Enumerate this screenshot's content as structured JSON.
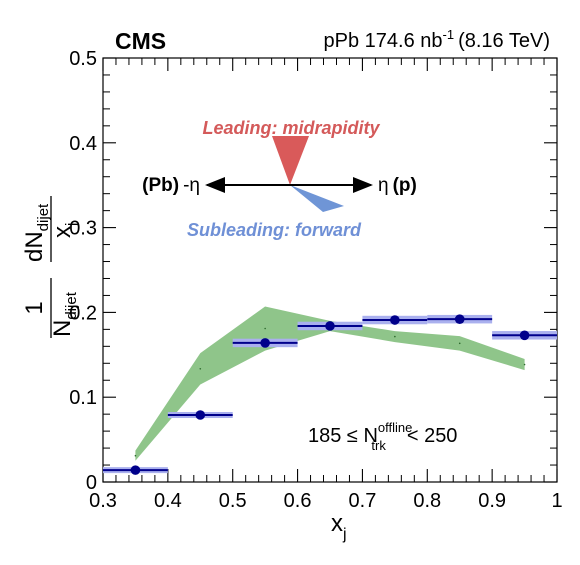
{
  "header": {
    "experiment": "CMS",
    "system": "pPb 174.6 nb",
    "lumi_exp": "-1",
    "energy": "(8.16 TeV)"
  },
  "diagram": {
    "leading": "Leading: midrapidity",
    "subleading": "Subleading: forward",
    "left_label_bold": "(Pb)",
    "left_label_eta": "-η",
    "right_label_eta": "η",
    "right_label_bold": "(p)"
  },
  "selection": {
    "prefix": "185 ≤ N",
    "sup": "offline",
    "sub": "trk",
    "suffix": "< 250"
  },
  "colors": {
    "data_marker": "#00008b",
    "sys_box": "#aab0ee",
    "band": "#8fc58a",
    "leading_wedge": "#d95a5a",
    "subleading_wedge": "#6f95d6",
    "leading_text": "#d45a5a",
    "subleading_text": "#6f90d6"
  },
  "chart_data": {
    "type": "scatter",
    "xlabel": "x_j",
    "ylabel": "1/N_dijet dN_dijet/dx_j",
    "xlim": [
      0.3,
      1.0
    ],
    "ylim": [
      0.0,
      0.5
    ],
    "xticks": [
      "0.3",
      "0.4",
      "0.5",
      "0.6",
      "0.7",
      "0.8",
      "0.9",
      "1"
    ],
    "yticks": [
      "0",
      "0.1",
      "0.2",
      "0.3",
      "0.4",
      "0.5"
    ],
    "series": [
      {
        "x": [
          0.35,
          0.45,
          0.55,
          0.65,
          0.75,
          0.85,
          0.95
        ],
        "x_halfwidth": 0.05,
        "values": [
          0.014,
          0.079,
          0.164,
          0.184,
          0.191,
          0.192,
          0.173
        ],
        "sys": [
          0.002,
          0.003,
          0.005,
          0.005,
          0.005,
          0.005,
          0.005
        ]
      },
      {
        "type": "band",
        "x": [
          0.35,
          0.45,
          0.55,
          0.65,
          0.75,
          0.85,
          0.95
        ],
        "lower": [
          0.025,
          0.115,
          0.155,
          0.178,
          0.165,
          0.155,
          0.132
        ],
        "upper": [
          0.037,
          0.152,
          0.207,
          0.19,
          0.178,
          0.172,
          0.145
        ]
      }
    ]
  }
}
